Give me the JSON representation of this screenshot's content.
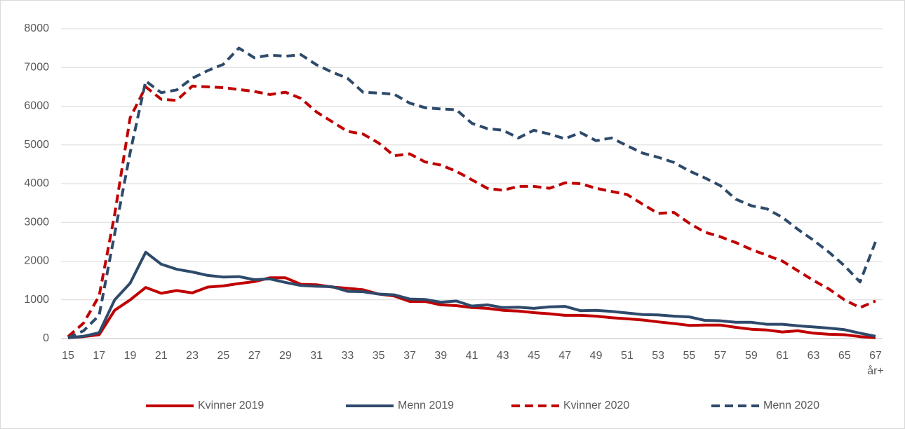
{
  "chart_data": {
    "type": "line",
    "categories": [
      "15",
      null,
      "17",
      null,
      "19",
      null,
      "21",
      null,
      "23",
      null,
      "25",
      null,
      "27",
      null,
      "29",
      null,
      "31",
      null,
      "33",
      null,
      "35",
      null,
      "37",
      null,
      "39",
      null,
      "41",
      null,
      "43",
      null,
      "45",
      null,
      "47",
      null,
      "49",
      null,
      "51",
      null,
      "53",
      null,
      "55",
      null,
      "57",
      null,
      "59",
      null,
      "61",
      null,
      "63",
      null,
      "65",
      null,
      "67 år+"
    ],
    "series": [
      {
        "name": "Kvinner 2019",
        "color": "#c00000",
        "dashed": false,
        "values": [
          20,
          50,
          100,
          730,
          1000,
          1320,
          1170,
          1240,
          1180,
          1330,
          1360,
          1420,
          1470,
          1570,
          1570,
          1400,
          1390,
          1330,
          1300,
          1260,
          1150,
          1100,
          960,
          960,
          870,
          850,
          800,
          780,
          730,
          710,
          670,
          640,
          600,
          600,
          580,
          540,
          510,
          480,
          430,
          390,
          340,
          350,
          350,
          290,
          240,
          220,
          170,
          200,
          140,
          110,
          100,
          50,
          20
        ]
      },
      {
        "name": "Menn 2019",
        "color": "#2e4a6b",
        "dashed": false,
        "values": [
          20,
          60,
          150,
          1000,
          1430,
          2230,
          1920,
          1790,
          1720,
          1630,
          1590,
          1600,
          1520,
          1540,
          1450,
          1370,
          1350,
          1340,
          1220,
          1210,
          1150,
          1130,
          1020,
          1010,
          940,
          970,
          840,
          870,
          800,
          810,
          780,
          820,
          830,
          720,
          730,
          700,
          660,
          620,
          610,
          580,
          560,
          470,
          460,
          420,
          420,
          370,
          370,
          330,
          300,
          270,
          230,
          140,
          60
        ]
      },
      {
        "name": "Kvinner 2020",
        "color": "#c00000",
        "dashed": true,
        "values": [
          50,
          400,
          1100,
          3200,
          5700,
          6500,
          6180,
          6150,
          6520,
          6500,
          6480,
          6430,
          6380,
          6300,
          6360,
          6200,
          5850,
          5600,
          5350,
          5280,
          5050,
          4720,
          4770,
          4560,
          4480,
          4320,
          4100,
          3880,
          3830,
          3930,
          3930,
          3880,
          4020,
          4000,
          3880,
          3800,
          3720,
          3470,
          3230,
          3260,
          2980,
          2750,
          2630,
          2480,
          2300,
          2150,
          2000,
          1750,
          1500,
          1280,
          1000,
          800,
          970
        ]
      },
      {
        "name": "Menn 2020",
        "color": "#2e4a6b",
        "dashed": true,
        "values": [
          20,
          200,
          600,
          2700,
          4800,
          6650,
          6350,
          6420,
          6720,
          6920,
          7080,
          7500,
          7250,
          7320,
          7290,
          7330,
          7070,
          6880,
          6720,
          6360,
          6340,
          6310,
          6080,
          5960,
          5930,
          5910,
          5560,
          5420,
          5380,
          5180,
          5380,
          5280,
          5160,
          5320,
          5110,
          5180,
          4980,
          4790,
          4680,
          4550,
          4330,
          4150,
          3950,
          3600,
          3430,
          3350,
          3130,
          2820,
          2540,
          2230,
          1880,
          1460,
          2500
        ]
      }
    ],
    "ylim": [
      0,
      8000
    ],
    "yticks": [
      0,
      1000,
      2000,
      3000,
      4000,
      5000,
      6000,
      7000,
      8000
    ],
    "grid": true,
    "legend": "bottom"
  }
}
